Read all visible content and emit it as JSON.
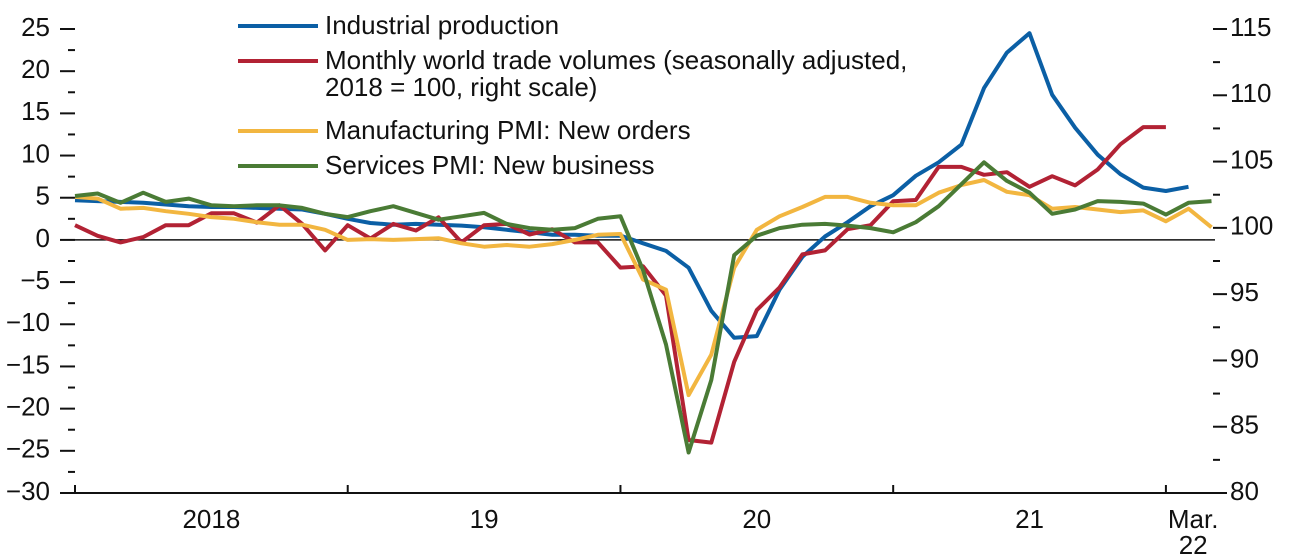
{
  "chart_data": {
    "type": "line",
    "x": [
      2018,
      2018.083,
      2018.167,
      2018.25,
      2018.333,
      2018.417,
      2018.5,
      2018.583,
      2018.667,
      2018.75,
      2018.833,
      2018.917,
      2019,
      2019.083,
      2019.167,
      2019.25,
      2019.333,
      2019.417,
      2019.5,
      2019.583,
      2019.667,
      2019.75,
      2019.833,
      2019.917,
      2020,
      2020.083,
      2020.167,
      2020.25,
      2020.333,
      2020.417,
      2020.5,
      2020.583,
      2020.667,
      2020.75,
      2020.833,
      2020.917,
      2021,
      2021.083,
      2021.167,
      2021.25,
      2021.333,
      2021.417,
      2021.5,
      2021.583,
      2021.667,
      2021.75,
      2021.833,
      2021.917,
      2022,
      2022.083,
      2022.167
    ],
    "xlim": [
      2018,
      2022.18
    ],
    "xticks": [
      2018,
      2019,
      2020,
      2021,
      2022
    ],
    "xlabels": [
      {
        "value": 2018.5,
        "label": "2018"
      },
      {
        "value": 2019.5,
        "label": "19"
      },
      {
        "value": 2020.5,
        "label": "20"
      },
      {
        "value": 2021.5,
        "label": "21"
      },
      {
        "value": 2022.1,
        "label": "Mar. 22"
      }
    ],
    "ylim": [
      -30,
      25
    ],
    "yticks": [
      {
        "value": -30,
        "label": "−30"
      },
      {
        "value": -25,
        "label": "−25"
      },
      {
        "value": -20,
        "label": "−20"
      },
      {
        "value": -15,
        "label": "−15"
      },
      {
        "value": -10,
        "label": "−10"
      },
      {
        "value": -5,
        "label": "−5"
      },
      0,
      5,
      10,
      15,
      20,
      25
    ],
    "y2lim": [
      80,
      115
    ],
    "y2ticks": [
      80,
      85,
      90,
      95,
      100,
      105,
      110,
      115
    ],
    "legend": "upper left",
    "series": [
      {
        "name": "Industrial production",
        "color": "#0b5fa5",
        "values": [
          4.7,
          4.6,
          4.5,
          4.4,
          4.2,
          4.0,
          3.9,
          3.9,
          3.8,
          3.7,
          3.6,
          3.1,
          2.5,
          2.0,
          1.8,
          1.9,
          1.8,
          1.7,
          1.5,
          1.2,
          0.9,
          0.6,
          0.6,
          0.5,
          0.5,
          -0.4,
          -1.3,
          -3.3,
          -8.4,
          -11.6,
          -11.4,
          -5.9,
          -2.0,
          0.4,
          2.1,
          4.0,
          5.3,
          7.6,
          9.2,
          11.3,
          18.0,
          22.2,
          24.5,
          17.2,
          13.3,
          10.1,
          7.8,
          6.2,
          5.8,
          6.3,
          null
        ]
      },
      {
        "name": "Monthly world trade volumes (seasonally adjusted, 2018 = 100, right scale)",
        "color": "#b22234",
        "axis": "y2",
        "values": [
          100.2,
          99.4,
          98.9,
          99.3,
          100.2,
          100.2,
          101.1,
          101.1,
          100.4,
          101.7,
          100.3,
          98.3,
          100.2,
          99.2,
          100.3,
          99.8,
          100.8,
          98.9,
          100.2,
          100.3,
          99.5,
          99.9,
          98.9,
          98.9,
          97.0,
          97.1,
          94.9,
          84.0,
          83.8,
          89.9,
          93.8,
          95.5,
          98.0,
          98.3,
          99.9,
          100.2,
          102.0,
          102.1,
          104.6,
          104.6,
          104.0,
          104.2,
          103.1,
          103.9,
          103.2,
          104.4,
          106.3,
          107.6,
          107.6,
          null,
          null
        ]
      },
      {
        "name": "Manufacturing PMI: New orders",
        "color": "#f2b640",
        "values": [
          5.1,
          4.9,
          3.7,
          3.8,
          3.4,
          3.1,
          2.7,
          2.5,
          2.1,
          1.8,
          1.8,
          1.2,
          0,
          0.1,
          0,
          0.1,
          0.2,
          -0.4,
          -0.8,
          -0.6,
          -0.8,
          -0.5,
          0,
          0.6,
          0.7,
          -4.7,
          -5.9,
          -18.4,
          -13.6,
          -3.3,
          1.2,
          2.8,
          3.9,
          5.1,
          5.1,
          4.4,
          4.1,
          4.1,
          5.6,
          6.5,
          7.1,
          5.7,
          5.3,
          3.7,
          3.9,
          3.6,
          3.3,
          3.5,
          2.2,
          3.7,
          1.5
        ]
      },
      {
        "name": "Services PMI: New business",
        "color": "#4a7b35",
        "values": [
          5.2,
          5.5,
          4.4,
          5.6,
          4.5,
          4.9,
          4.1,
          4.0,
          4.1,
          4.1,
          3.8,
          3.1,
          2.7,
          3.4,
          4.0,
          3.2,
          2.4,
          2.8,
          3.2,
          1.9,
          1.4,
          1.2,
          1.4,
          2.5,
          2.8,
          -3.6,
          -12.4,
          -25.2,
          -16.6,
          -1.8,
          0.5,
          1.4,
          1.8,
          1.9,
          1.7,
          1.4,
          0.9,
          2.1,
          4.0,
          6.6,
          9.2,
          7.0,
          5.6,
          3.1,
          3.6,
          4.6,
          4.5,
          4.3,
          3.0,
          4.4,
          4.6
        ]
      }
    ]
  }
}
